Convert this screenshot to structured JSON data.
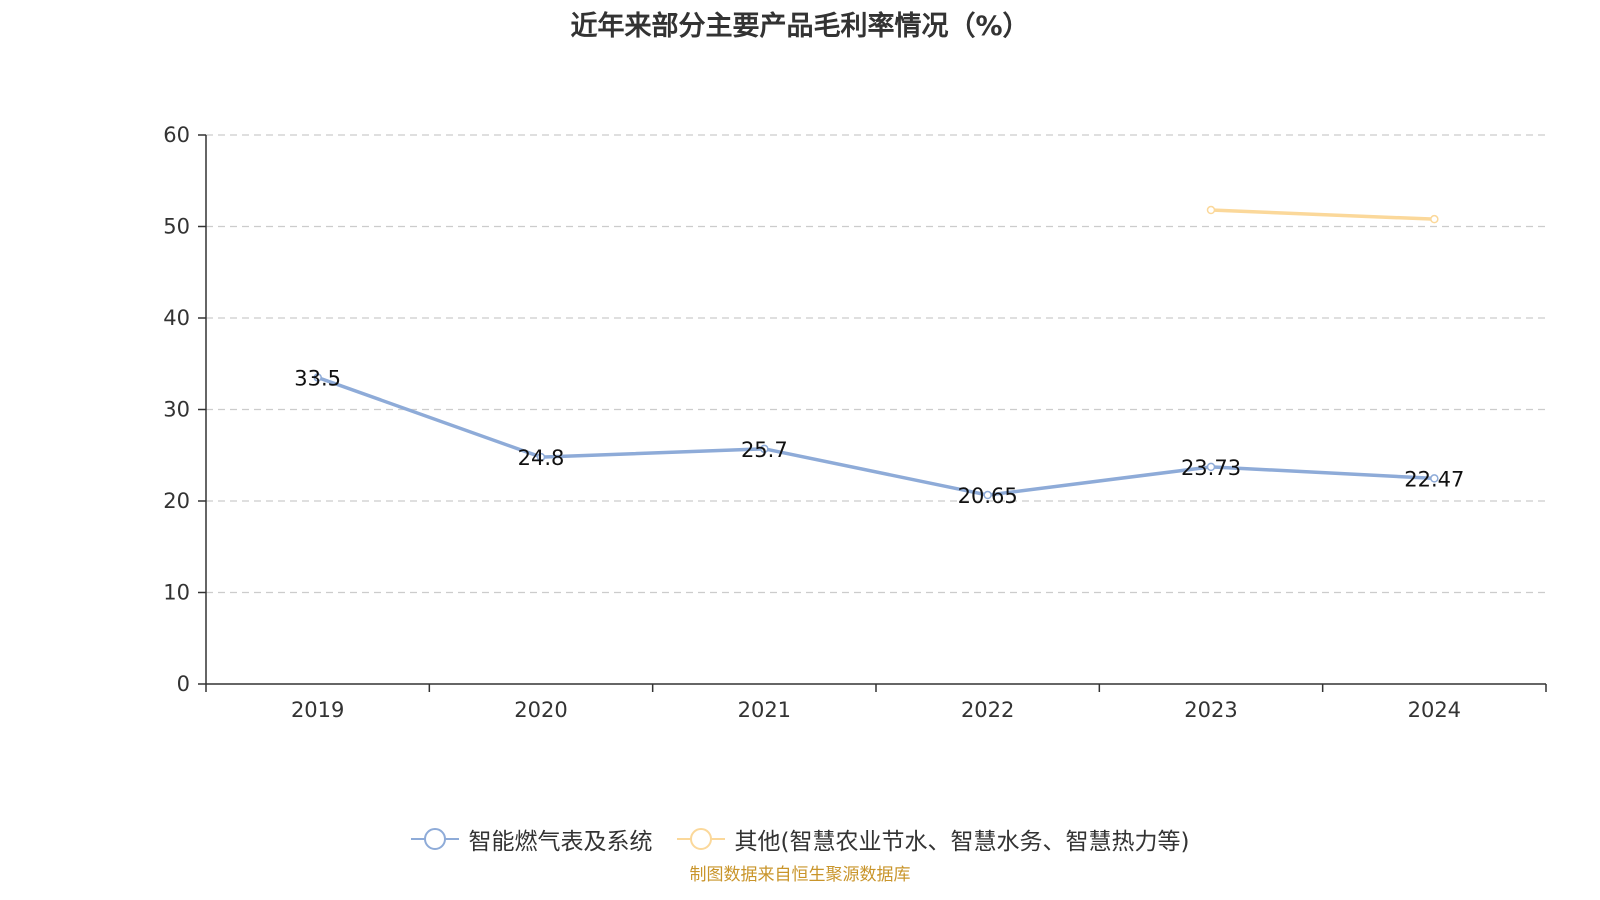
{
  "title": "近年来部分主要产品毛利率情况（%）",
  "source_note": "制图数据来自恒生聚源数据库",
  "colors": {
    "series_smart_gas": "#8eabd8",
    "series_other": "#fbd89a",
    "axis": "#333333",
    "grid": "#cccccc",
    "text": "#333333",
    "source": "#c9952b"
  },
  "legend": {
    "items": [
      {
        "label": "智能燃气表及系统",
        "icon": "circle-line-icon"
      },
      {
        "label": "其他(智慧农业节水、智慧水务、智慧热力等)",
        "icon": "circle-line-icon"
      }
    ]
  },
  "chart_data": {
    "type": "line",
    "title": "近年来部分主要产品毛利率情况（%）",
    "xlabel": "",
    "ylabel": "",
    "categories": [
      "2019",
      "2020",
      "2021",
      "2022",
      "2023",
      "2024"
    ],
    "ylim": [
      0,
      60
    ],
    "yticks": [
      0,
      10,
      20,
      30,
      40,
      50,
      60
    ],
    "grid": true,
    "legend_position": "bottom",
    "series": [
      {
        "name": "智能燃气表及系统",
        "values": [
          33.5,
          24.8,
          25.7,
          20.65,
          23.73,
          22.47
        ],
        "labels": [
          "33.5",
          "24.8",
          "25.7",
          "20.65",
          "23.73",
          "22.47"
        ],
        "show_labels": true
      },
      {
        "name": "其他(智慧农业节水、智慧水务、智慧热力等)",
        "values": [
          null,
          null,
          null,
          null,
          51.8,
          50.8
        ],
        "show_labels": false
      }
    ]
  }
}
